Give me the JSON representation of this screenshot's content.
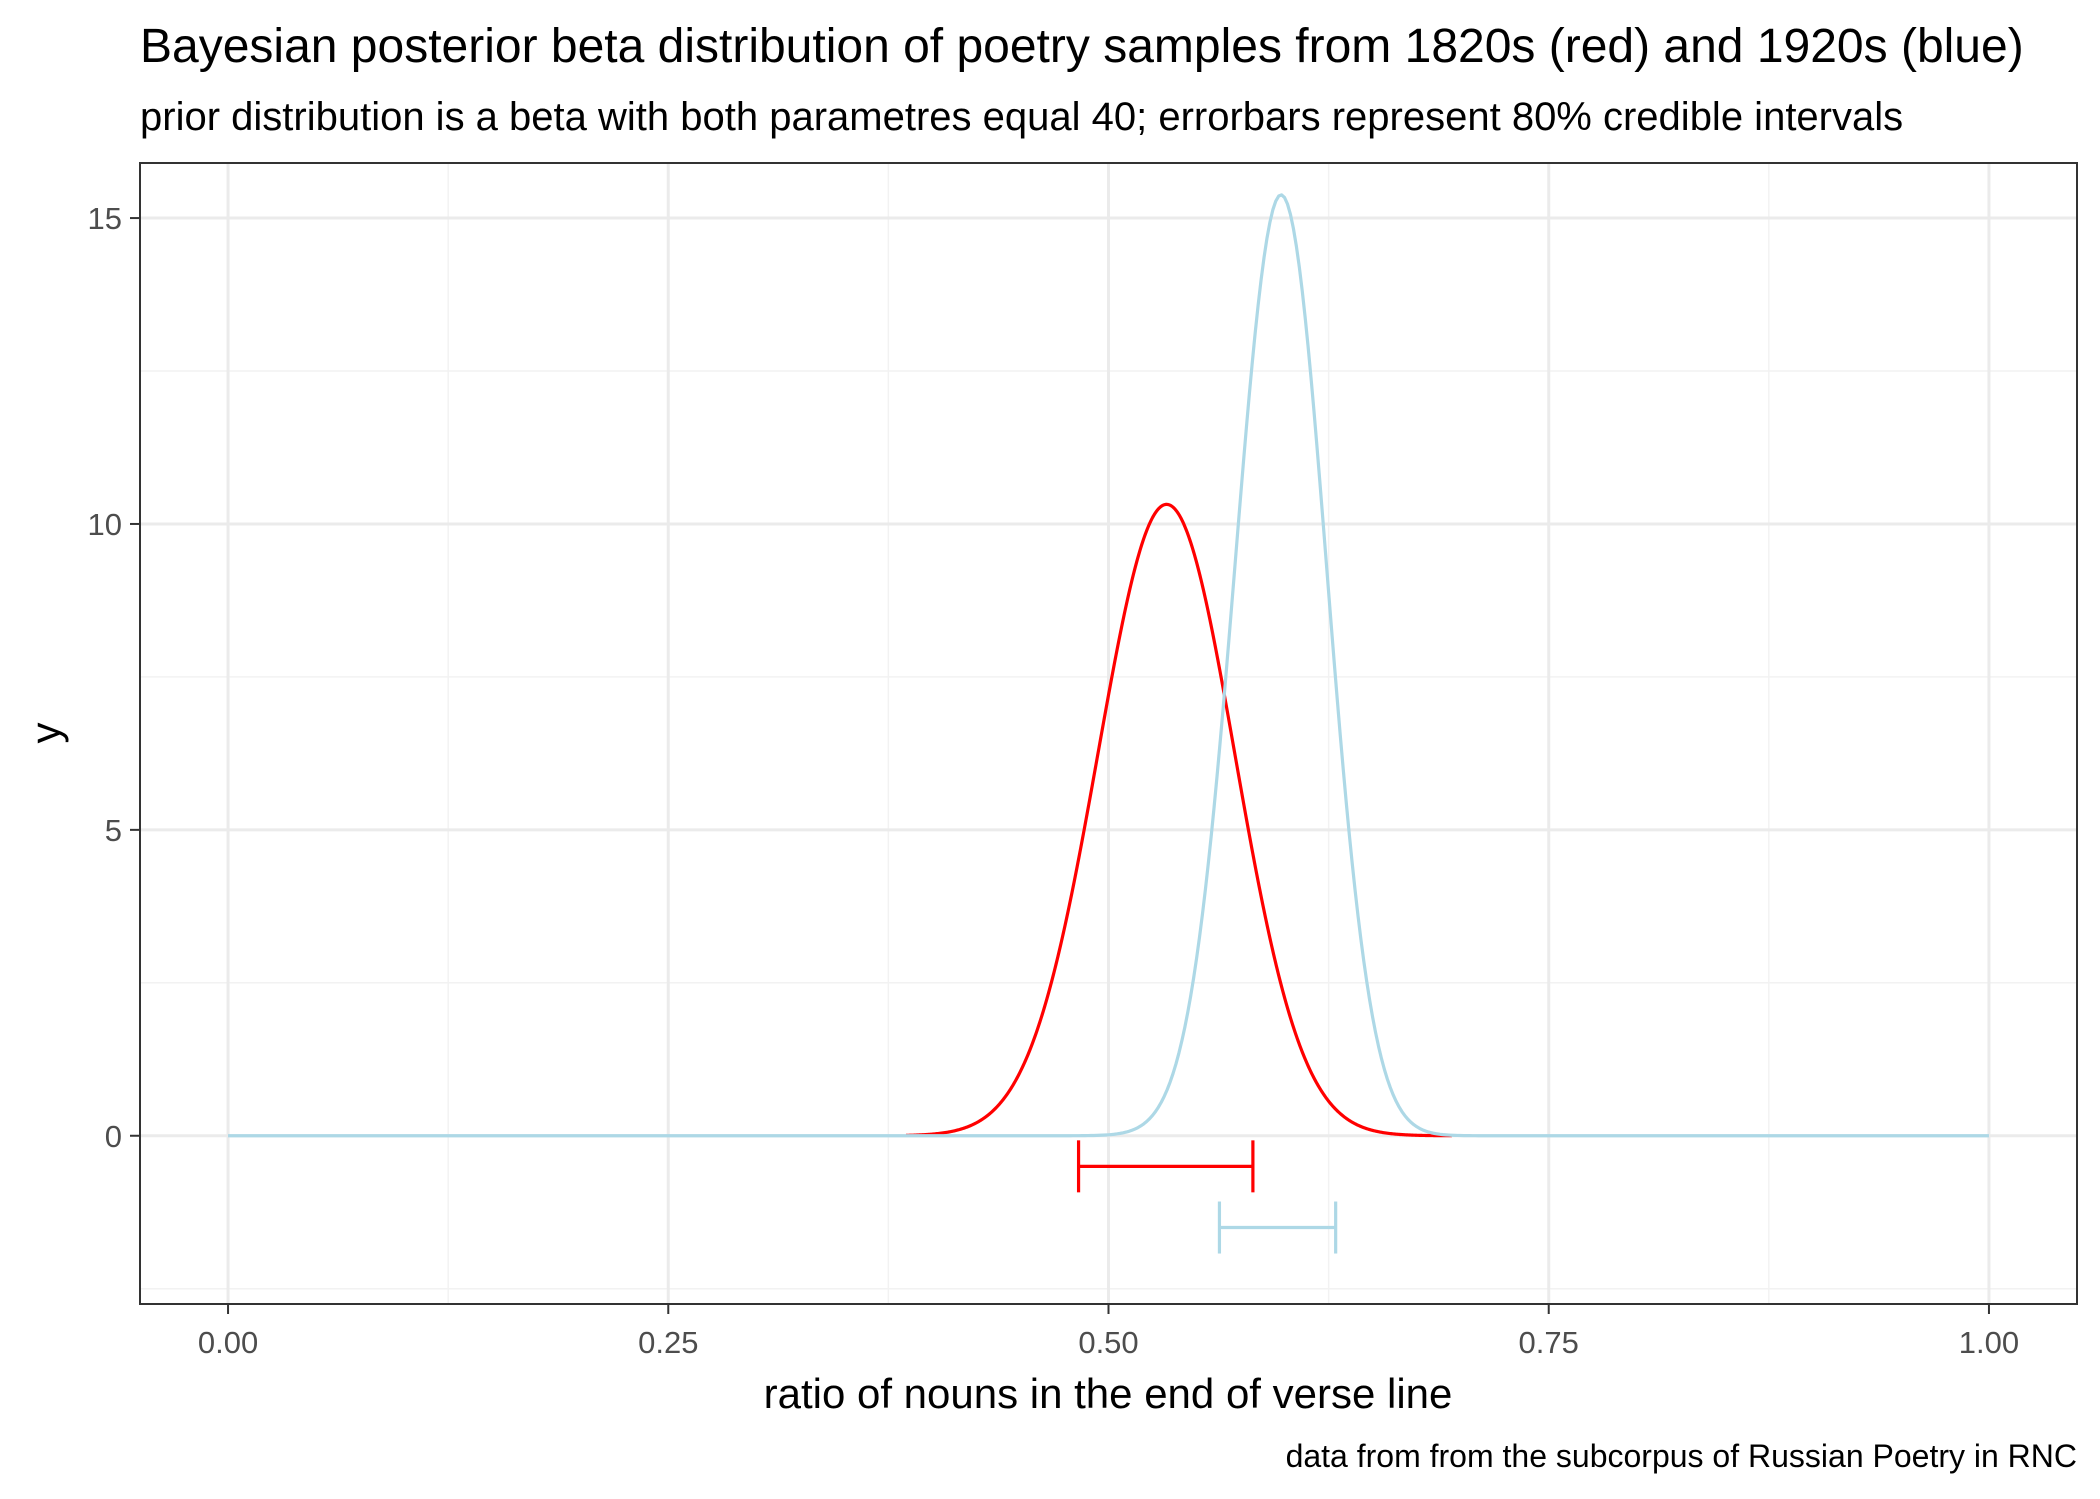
{
  "chart_data": {
    "type": "line",
    "title": "Bayesian posterior beta distribution of poetry samples from 1820s (red) and 1920s (blue)",
    "subtitle": "prior distribution is a beta with both parametres equal 40; errorbars represent 80% credible intervals",
    "xlabel": "ratio of nouns in the end of verse line",
    "ylabel": "y",
    "caption": "data from  from the subcorpus of Russian Poetry in RNC",
    "xlim": [
      -0.05,
      1.05
    ],
    "ylim": [
      -2.75,
      15.9
    ],
    "x_ticks": [
      0,
      0.25,
      0.5,
      0.75,
      1
    ],
    "x_tick_labels": [
      "0.00",
      "0.25",
      "0.50",
      "0.75",
      "1.00"
    ],
    "y_ticks": [
      0,
      5,
      10,
      15
    ],
    "y_tick_labels": [
      "0",
      "5",
      "10",
      "15"
    ],
    "grid": true,
    "series": [
      {
        "color": "#ff0000",
        "x_range": [
          0.385,
          0.695
        ],
        "peak": {
          "x": 0.533,
          "y": 10.32
        },
        "errorbar": {
          "low": 0.483,
          "high": 0.582,
          "y": -0.5
        }
      },
      {
        "color": "#add8e6",
        "x_range": [
          0,
          1
        ],
        "peak": {
          "x": 0.598,
          "y": 15.38
        },
        "errorbar": {
          "low": 0.563,
          "high": 0.629,
          "y": -1.5
        }
      }
    ]
  }
}
